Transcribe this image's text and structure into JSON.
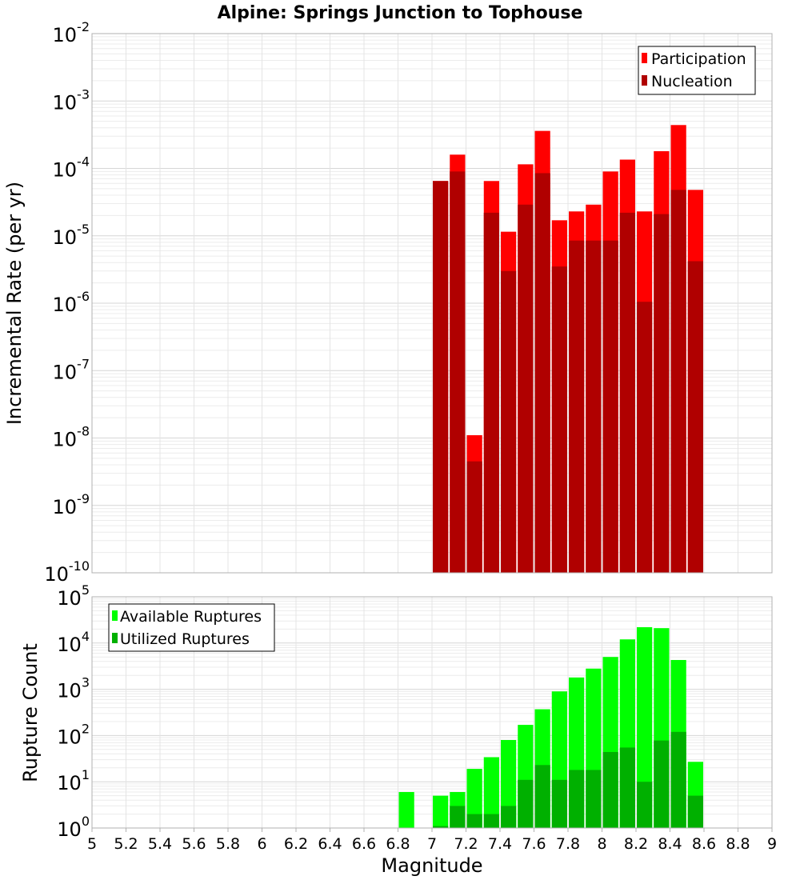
{
  "chart_data": [
    {
      "type": "bar",
      "title": "Alpine: Springs Junction to Tophouse",
      "ylabel": "Incremental Rate (per yr)",
      "xlabel": "",
      "y_scale": "log",
      "ylim_exp": [
        -10,
        -2
      ],
      "xlim": [
        5,
        9
      ],
      "grid": true,
      "legend_position": "top-right",
      "colors": {
        "Participation": "#ff0000",
        "Nucleation": "#b00000"
      },
      "x": [
        7.05,
        7.15,
        7.25,
        7.35,
        7.45,
        7.55,
        7.65,
        7.75,
        7.85,
        7.95,
        8.05,
        8.15,
        8.25,
        8.35,
        8.45,
        8.55
      ],
      "series": [
        {
          "name": "Participation",
          "values": [
            6.5e-05,
            0.00016,
            1.1e-08,
            6.5e-05,
            1.15e-05,
            0.000115,
            0.00036,
            1.7e-05,
            2.3e-05,
            2.9e-05,
            9e-05,
            0.000135,
            2.3e-05,
            0.00018,
            0.00044,
            4.8e-05
          ]
        },
        {
          "name": "Nucleation",
          "values": [
            6.5e-05,
            9e-05,
            4.5e-09,
            2.2e-05,
            3e-06,
            2.9e-05,
            8.5e-05,
            3.5e-06,
            8.5e-06,
            8.5e-06,
            8.5e-06,
            2.2e-05,
            1.05e-06,
            2.1e-05,
            4.8e-05,
            4.2e-06
          ]
        }
      ]
    },
    {
      "type": "bar",
      "ylabel": "Rupture Count",
      "xlabel": "Magnitude",
      "y_scale": "log",
      "ylim_exp": [
        0,
        5
      ],
      "xlim": [
        5,
        9
      ],
      "grid": true,
      "legend_position": "top-left",
      "colors": {
        "Available Ruptures": "#00ff00",
        "Utilized Ruptures": "#00b000"
      },
      "x_ticks": [
        "5",
        "5.2",
        "5.4",
        "5.6",
        "5.8",
        "6",
        "6.2",
        "6.4",
        "6.6",
        "6.8",
        "7",
        "7.2",
        "7.4",
        "7.6",
        "7.8",
        "8",
        "8.2",
        "8.4",
        "8.6",
        "8.8",
        "9"
      ],
      "x": [
        6.85,
        7.05,
        7.15,
        7.25,
        7.35,
        7.45,
        7.55,
        7.65,
        7.75,
        7.85,
        7.95,
        8.05,
        8.15,
        8.25,
        8.35,
        8.45,
        8.55
      ],
      "series": [
        {
          "name": "Available Ruptures",
          "values": [
            6,
            5,
            6,
            19,
            34,
            80,
            170,
            370,
            900,
            1800,
            2800,
            5000,
            12000,
            22000,
            21000,
            4300,
            27
          ]
        },
        {
          "name": "Utilized Ruptures",
          "values": [
            null,
            1.1,
            3,
            2,
            2,
            3,
            11,
            23,
            11,
            18,
            18,
            44,
            55,
            10,
            78,
            120,
            5
          ]
        }
      ]
    }
  ]
}
